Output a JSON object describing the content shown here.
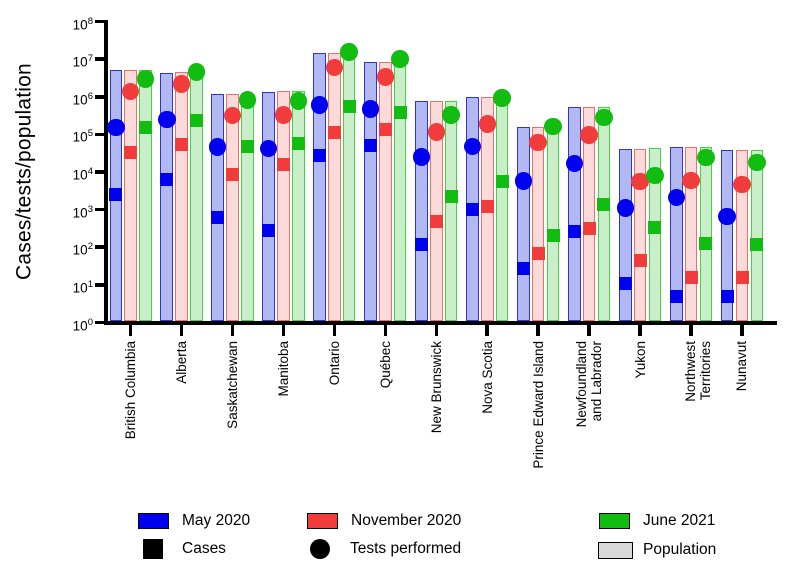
{
  "chart_data": {
    "type": "grouped-bar-with-scatter-markers",
    "title": "",
    "ylabel": "Cases/tests/population",
    "xlabel": "",
    "y_scale": "log10",
    "ylim": [
      1,
      100000000
    ],
    "grid": false,
    "legend_position": "bottom",
    "y_tick_exponents": [
      8,
      7,
      6,
      5,
      4,
      3,
      2,
      1,
      0
    ],
    "categories": [
      "British Columbia",
      "Alberta",
      "Saskatchewan",
      "Manitoba",
      "Ontario",
      "Québec",
      "New Brunswick",
      "Nova Scotia",
      "Prince Edward Island",
      "Newfoundland\nand Labrador",
      "Yukon",
      "Northwest Territories",
      "Nunavut"
    ],
    "series": [
      {
        "period": "May 2020",
        "marker_color": "#0000f0",
        "bar_fill": "#b2b8f2",
        "bar_border": "#2c35dd",
        "population": [
          5000000,
          4400000,
          1170000,
          1370000,
          14200000,
          8500000,
          780000,
          970000,
          158000,
          520000,
          41000,
          45000,
          38500
        ],
        "cases": [
          2500,
          6500,
          620,
          280,
          27000,
          50000,
          120,
          1000,
          27,
          260,
          11,
          5,
          5
        ],
        "tests_performed": [
          150000,
          250000,
          46000,
          42000,
          600000,
          470000,
          25000,
          48000,
          5800,
          17000,
          1100,
          2100,
          650
        ]
      },
      {
        "period": "November 2020",
        "marker_color": "#f23c3c",
        "bar_fill": "#fbdada",
        "bar_border": "#ef6e6e",
        "population": [
          5050000,
          4420000,
          1175000,
          1380000,
          14300000,
          8550000,
          785000,
          975000,
          160000,
          521000,
          42000,
          45000,
          39000
        ],
        "cases": [
          33000,
          55000,
          8500,
          16000,
          110000,
          135000,
          480,
          1200,
          68,
          320,
          45,
          16,
          16
        ],
        "tests_performed": [
          1400000,
          2200000,
          320000,
          330000,
          6000000,
          3400000,
          115000,
          190000,
          60000,
          95000,
          5600,
          6000,
          4600
        ]
      },
      {
        "period": "June 2021",
        "marker_color": "#10bd10",
        "bar_fill": "#c9eec9",
        "bar_border": "#41d341",
        "population": [
          5150000,
          4460000,
          1180000,
          1390000,
          14500000,
          8600000,
          790000,
          990000,
          163000,
          522000,
          43000,
          45500,
          39500
        ],
        "cases": [
          148000,
          232000,
          49000,
          58000,
          545000,
          375000,
          2300,
          5700,
          200,
          1400,
          340,
          128,
          120
        ],
        "tests_performed": [
          3000000,
          4600000,
          820000,
          780000,
          15500000,
          10000000,
          330000,
          920000,
          160000,
          280000,
          8000,
          24000,
          18000
        ]
      }
    ],
    "legend": {
      "periods": [
        {
          "label": "May 2020"
        },
        {
          "label": "November 2020"
        },
        {
          "label": "June 2021"
        }
      ],
      "markers": [
        {
          "label": "Cases",
          "shape": "square",
          "fill": "#000000"
        },
        {
          "label": "Tests performed",
          "shape": "circle",
          "fill": "#000000"
        },
        {
          "label": "Population",
          "shape": "rect",
          "fill": "#d9d9d9"
        }
      ]
    }
  }
}
